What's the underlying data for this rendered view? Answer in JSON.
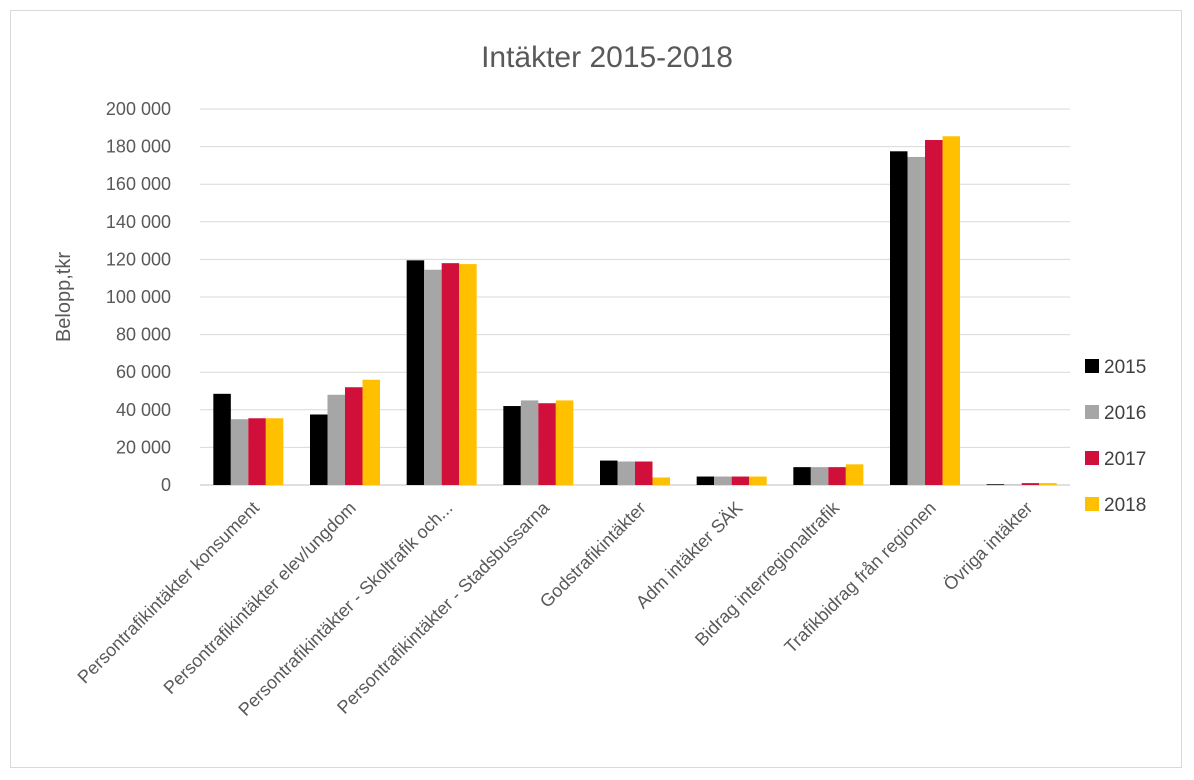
{
  "chart_data": {
    "type": "bar",
    "title": "Intäkter 2015-2018",
    "ylabel": "Belopp,tkr",
    "xlabel": "",
    "ylim": [
      0,
      200000
    ],
    "yticks": [
      0,
      20000,
      40000,
      60000,
      80000,
      100000,
      120000,
      140000,
      160000,
      180000,
      200000
    ],
    "ytick_labels": [
      "0",
      "20 000",
      "40 000",
      "60 000",
      "80 000",
      "100 000",
      "120 000",
      "140 000",
      "160 000",
      "180 000",
      "200 000"
    ],
    "grid": true,
    "legend": "right",
    "categories": [
      "Persontrafikintäkter konsument",
      "Persontrafikintäkter elev/ungdom",
      "Persontrafikintäkter - Skoltrafik och...",
      "Persontrafikintäkter - Stadsbussarna",
      "Godstrafikintäkter",
      "Adm intäkter SÄK",
      "Bidrag interregionaltrafik",
      "Trafikbidrag från regionen",
      "Övriga intäkter"
    ],
    "series": [
      {
        "name": "2015",
        "color": "#000000",
        "values": [
          48500,
          37500,
          119500,
          42000,
          13000,
          4500,
          9500,
          177500,
          400
        ]
      },
      {
        "name": "2016",
        "color": "#a6a6a6",
        "values": [
          35000,
          48000,
          114500,
          45000,
          12500,
          4500,
          9500,
          174500,
          300
        ]
      },
      {
        "name": "2017",
        "color": "#d0103a",
        "values": [
          35500,
          52000,
          118000,
          43500,
          12500,
          4500,
          9500,
          183500,
          1000
        ]
      },
      {
        "name": "2018",
        "color": "#ffc000",
        "values": [
          35500,
          56000,
          117500,
          45000,
          4000,
          4500,
          11000,
          185500,
          1000
        ]
      }
    ]
  }
}
